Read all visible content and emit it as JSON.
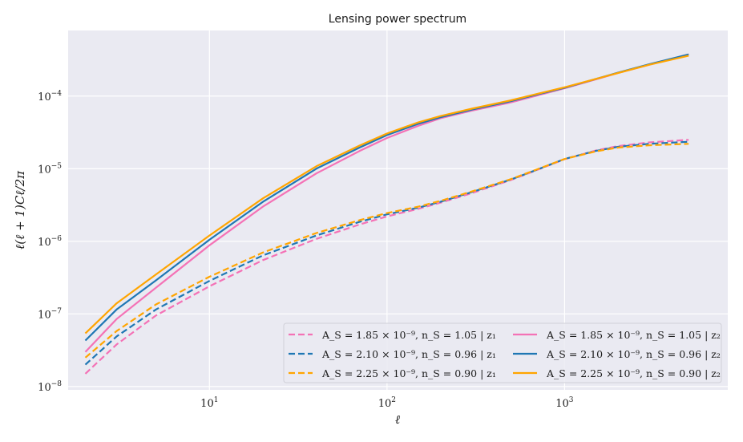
{
  "chart_data": {
    "type": "line",
    "title": "Lensing power spectrum",
    "xlabel": "ℓ",
    "ylabel": "ℓ(ℓ + 1)Cℓ/2π",
    "xscale": "log",
    "yscale": "log",
    "xlim": [
      1.6,
      8300
    ],
    "ylim": [
      9e-09,
      0.0008
    ],
    "grid": true,
    "legend_position": "lower-right",
    "legend_columns": 2,
    "x_ticks": [
      {
        "value": 10,
        "base": "10",
        "exp": "1"
      },
      {
        "value": 100,
        "base": "10",
        "exp": "2"
      },
      {
        "value": 1000,
        "base": "10",
        "exp": "3"
      }
    ],
    "y_ticks": [
      {
        "value": 1e-08,
        "base": "10",
        "exp": "−8"
      },
      {
        "value": 1e-07,
        "base": "10",
        "exp": "−7"
      },
      {
        "value": 1e-06,
        "base": "10",
        "exp": "−6"
      },
      {
        "value": 1e-05,
        "base": "10",
        "exp": "−5"
      },
      {
        "value": 0.0001,
        "base": "10",
        "exp": "−4"
      }
    ],
    "x": [
      2,
      3,
      5,
      10,
      20,
      40,
      70,
      100,
      150,
      200,
      300,
      500,
      700,
      1000,
      1500,
      2000,
      3000,
      5000
    ],
    "series": [
      {
        "name": "A_S = 1.85 × 10⁻⁹, n_S = 1.05 | z₁",
        "color": "#f472b6",
        "dash": true,
        "values": [
          1.5e-08,
          3.8e-08,
          9.5e-08,
          2.4e-07,
          5.5e-07,
          1.08e-06,
          1.7e-06,
          2.2e-06,
          2.8e-06,
          3.4e-06,
          4.6e-06,
          7e-06,
          9.6e-06,
          1.35e-05,
          1.78e-05,
          2.05e-05,
          2.3e-05,
          2.5e-05
        ]
      },
      {
        "name": "A_S = 2.10 × 10⁻⁹, n_S = 0.96 | z₁",
        "color": "#1f77b4",
        "dash": true,
        "values": [
          2e-08,
          4.9e-08,
          1.15e-07,
          2.85e-07,
          6.4e-07,
          1.2e-06,
          1.85e-06,
          2.35e-06,
          2.9e-06,
          3.5e-06,
          4.75e-06,
          7.1e-06,
          9.7e-06,
          1.36e-05,
          1.76e-05,
          2e-05,
          2.2e-05,
          2.35e-05
        ]
      },
      {
        "name": "A_S = 2.25 × 10⁻⁹, n_S = 0.90 | z₁",
        "color": "#ffa500",
        "dash": true,
        "values": [
          2.5e-08,
          5.8e-08,
          1.35e-07,
          3.25e-07,
          7e-07,
          1.3e-06,
          1.95e-06,
          2.45e-06,
          3e-06,
          3.6e-06,
          4.85e-06,
          7.2e-06,
          9.8e-06,
          1.36e-05,
          1.73e-05,
          1.95e-05,
          2.1e-05,
          2.2e-05
        ]
      },
      {
        "name": "A_S = 1.85 × 10⁻⁹, n_S = 1.05 | z₂",
        "color": "#f472b6",
        "dash": false,
        "values": [
          3e-08,
          8.5e-08,
          2.3e-07,
          8.8e-07,
          3e-06,
          8.6e-06,
          1.75e-05,
          2.65e-05,
          3.9e-05,
          4.95e-05,
          6.3e-05,
          8.2e-05,
          0.000102,
          0.000128,
          0.00017,
          0.000208,
          0.00027,
          0.000375
        ]
      },
      {
        "name": "A_S = 2.10 × 10⁻⁹, n_S = 0.96 | z₂",
        "color": "#1f77b4",
        "dash": false,
        "values": [
          4.3e-08,
          1.15e-07,
          2.9e-07,
          1.05e-06,
          3.5e-06,
          1e-05,
          1.95e-05,
          2.9e-05,
          4.15e-05,
          5.1e-05,
          6.5e-05,
          8.5e-05,
          0.000105,
          0.00013,
          0.000172,
          0.00021,
          0.000275,
          0.000375
        ]
      },
      {
        "name": "A_S = 2.25 × 10⁻⁹, n_S = 0.90 | z₂",
        "color": "#ffa500",
        "dash": false,
        "values": [
          5.4e-08,
          1.4e-07,
          3.5e-07,
          1.2e-06,
          3.9e-06,
          1.08e-05,
          2.08e-05,
          3.05e-05,
          4.35e-05,
          5.3e-05,
          6.7e-05,
          8.75e-05,
          0.000107,
          0.000132,
          0.000172,
          0.000208,
          0.00027,
          0.00036
        ]
      }
    ]
  }
}
